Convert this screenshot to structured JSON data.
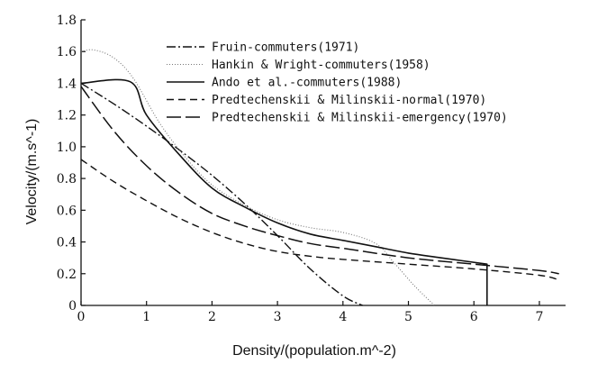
{
  "chart_data": {
    "type": "line",
    "xlabel": "Density/(population.m^-2)",
    "ylabel": "Velocity/(m.s^-1)",
    "xlim": [
      0,
      7.4
    ],
    "ylim": [
      0,
      1.8
    ],
    "x_ticks": [
      "0",
      "1",
      "2",
      "3",
      "4",
      "5",
      "6",
      "7"
    ],
    "y_ticks": [
      "0",
      "0.2",
      "0.4",
      "0.6",
      "0.8",
      "1.0",
      "1.2",
      "1.4",
      "1.6",
      "1.8"
    ],
    "grid": false,
    "legend_position": "top-right",
    "series": [
      {
        "name": "Fruin-commuters(1971)",
        "dash": "dashdot",
        "points": [
          [
            0,
            1.4
          ],
          [
            0.5,
            1.27
          ],
          [
            1,
            1.13
          ],
          [
            1.5,
            0.98
          ],
          [
            2,
            0.82
          ],
          [
            2.5,
            0.64
          ],
          [
            3,
            0.44
          ],
          [
            3.5,
            0.23
          ],
          [
            4,
            0.06
          ],
          [
            4.3,
            0
          ]
        ]
      },
      {
        "name": "Hankin & Wright-commuters(1958)",
        "dash": "dotted",
        "points": [
          [
            0,
            1.6
          ],
          [
            0.2,
            1.61
          ],
          [
            0.5,
            1.56
          ],
          [
            0.8,
            1.43
          ],
          [
            1.2,
            1.15
          ],
          [
            1.6,
            0.93
          ],
          [
            2,
            0.76
          ],
          [
            2.5,
            0.63
          ],
          [
            3,
            0.54
          ],
          [
            3.5,
            0.49
          ],
          [
            4,
            0.46
          ],
          [
            4.5,
            0.39
          ],
          [
            4.8,
            0.26
          ],
          [
            5.1,
            0.12
          ],
          [
            5.4,
            0
          ]
        ]
      },
      {
        "name": "Ando et al.-commuters(1988)",
        "dash": "solid",
        "points": [
          [
            0,
            1.4
          ],
          [
            0.75,
            1.41
          ],
          [
            1,
            1.2
          ],
          [
            1.5,
            0.95
          ],
          [
            2,
            0.74
          ],
          [
            2.5,
            0.62
          ],
          [
            3,
            0.52
          ],
          [
            3.5,
            0.45
          ],
          [
            4,
            0.41
          ],
          [
            4.5,
            0.37
          ],
          [
            5,
            0.33
          ],
          [
            5.5,
            0.3
          ],
          [
            6.2,
            0.26
          ],
          [
            6.2,
            0
          ]
        ]
      },
      {
        "name": "Predtechenskii & Milinskii-normal(1970)",
        "dash": "dashed",
        "points": [
          [
            0,
            0.92
          ],
          [
            0.5,
            0.78
          ],
          [
            1,
            0.66
          ],
          [
            1.5,
            0.55
          ],
          [
            2,
            0.46
          ],
          [
            2.5,
            0.39
          ],
          [
            3,
            0.34
          ],
          [
            3.5,
            0.31
          ],
          [
            4,
            0.29
          ],
          [
            5,
            0.26
          ],
          [
            6,
            0.23
          ],
          [
            7,
            0.19
          ],
          [
            7.3,
            0.16
          ]
        ]
      },
      {
        "name": "Predtechenskii & Milinskii-emergency(1970)",
        "dash": "longdash",
        "points": [
          [
            0,
            1.38
          ],
          [
            0.5,
            1.1
          ],
          [
            1,
            0.88
          ],
          [
            1.5,
            0.71
          ],
          [
            2,
            0.58
          ],
          [
            2.5,
            0.5
          ],
          [
            3,
            0.44
          ],
          [
            3.5,
            0.39
          ],
          [
            4,
            0.36
          ],
          [
            5,
            0.3
          ],
          [
            6,
            0.26
          ],
          [
            7,
            0.22
          ],
          [
            7.3,
            0.2
          ]
        ]
      }
    ]
  }
}
